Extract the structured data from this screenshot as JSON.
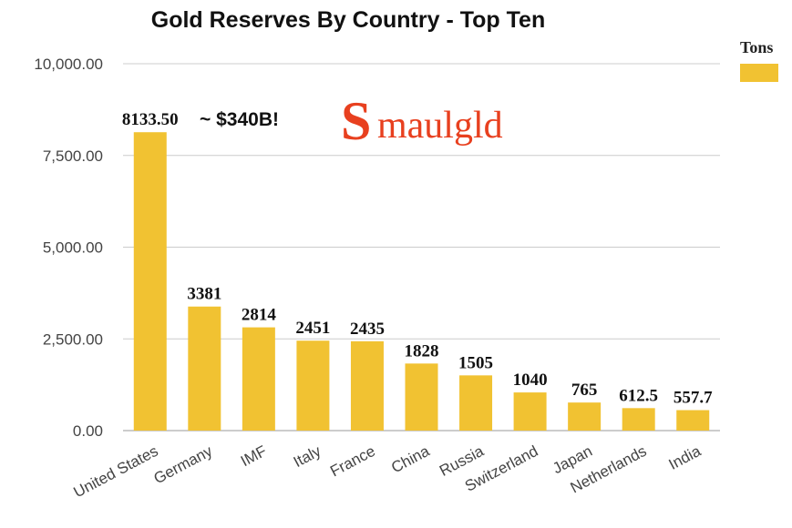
{
  "chart_data": {
    "type": "bar",
    "title": "Gold Reserves By Country - Top Ten",
    "categories": [
      "United States",
      "Germany",
      "IMF",
      "Italy",
      "France",
      "China",
      "Russia",
      "Switzerland",
      "Japan",
      "Netherlands",
      "India"
    ],
    "values": [
      8133.5,
      3381,
      2814,
      2451,
      2435,
      1828,
      1505,
      1040,
      765,
      612.5,
      557.7
    ],
    "data_labels": [
      "8133.50",
      "3381",
      "2814",
      "2451",
      "2435",
      "1828",
      "1505",
      "1040",
      "765",
      "612.5",
      "557.7"
    ],
    "ylim": [
      0,
      10000
    ],
    "yticks": [
      0,
      2500,
      5000,
      7500,
      10000
    ],
    "ytick_labels": [
      "0.00",
      "2,500.00",
      "5,000.00",
      "7,500.00",
      "10,000.00"
    ],
    "xlabel": "",
    "ylabel": "",
    "legend": {
      "entries": [
        "Tons"
      ],
      "placement": "top-right"
    },
    "annotation": "~ $340B!",
    "grid": true,
    "bar_color": "#f1c232",
    "grid_color": "#cccccc"
  },
  "watermark": {
    "text": "Smaulgld",
    "initial": "S",
    "rest": "maulgld",
    "color": "#e8401f"
  }
}
